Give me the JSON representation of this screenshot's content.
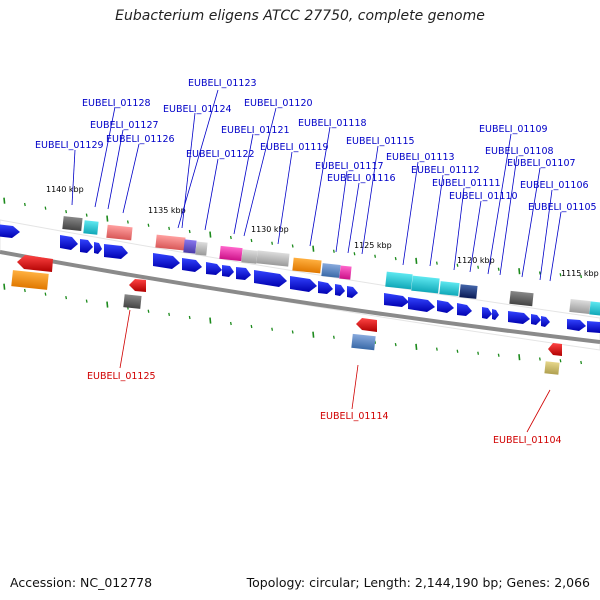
{
  "title": "Eubacterium eligens ATCC 27750, complete genome",
  "footer": {
    "accession": "Accession: NC_012778",
    "summary": "Topology: circular; Length: 2,144,190 bp; Genes: 2,066"
  },
  "positions": [
    {
      "text": "1140 kbp"
    },
    {
      "text": "1135 kbp"
    },
    {
      "text": "1130 kbp"
    },
    {
      "text": "1125 kbp"
    },
    {
      "text": "1120 kbp"
    },
    {
      "text": "1115 kbp"
    }
  ],
  "blue_labels": [
    {
      "text": "EUBELI_01123"
    },
    {
      "text": "EUBELI_01128"
    },
    {
      "text": "EUBELI_01124"
    },
    {
      "text": "EUBELI_01120"
    },
    {
      "text": "EUBELI_01127"
    },
    {
      "text": "EUBELI_01118"
    },
    {
      "text": "EUBELI_01121"
    },
    {
      "text": "EUBELI_01126"
    },
    {
      "text": "EUBELI_01129"
    },
    {
      "text": "EUBELI_01115"
    },
    {
      "text": "EUBELI_01119"
    },
    {
      "text": "EUBELI_01122"
    },
    {
      "text": "EUBELI_01113"
    },
    {
      "text": "EUBELI_01117"
    },
    {
      "text": "EUBELI_01112"
    },
    {
      "text": "EUBELI_01116"
    },
    {
      "text": "EUBELI_01111"
    },
    {
      "text": "EUBELI_01110"
    },
    {
      "text": "EUBELI_01109"
    },
    {
      "text": "EUBELI_01108"
    },
    {
      "text": "EUBELI_01107"
    },
    {
      "text": "EUBELI_01106"
    },
    {
      "text": "EUBELI_01105"
    }
  ],
  "red_labels": [
    {
      "text": "EUBELI_01125"
    },
    {
      "text": "EUBELI_01114"
    },
    {
      "text": "EUBELI_01104"
    }
  ]
}
